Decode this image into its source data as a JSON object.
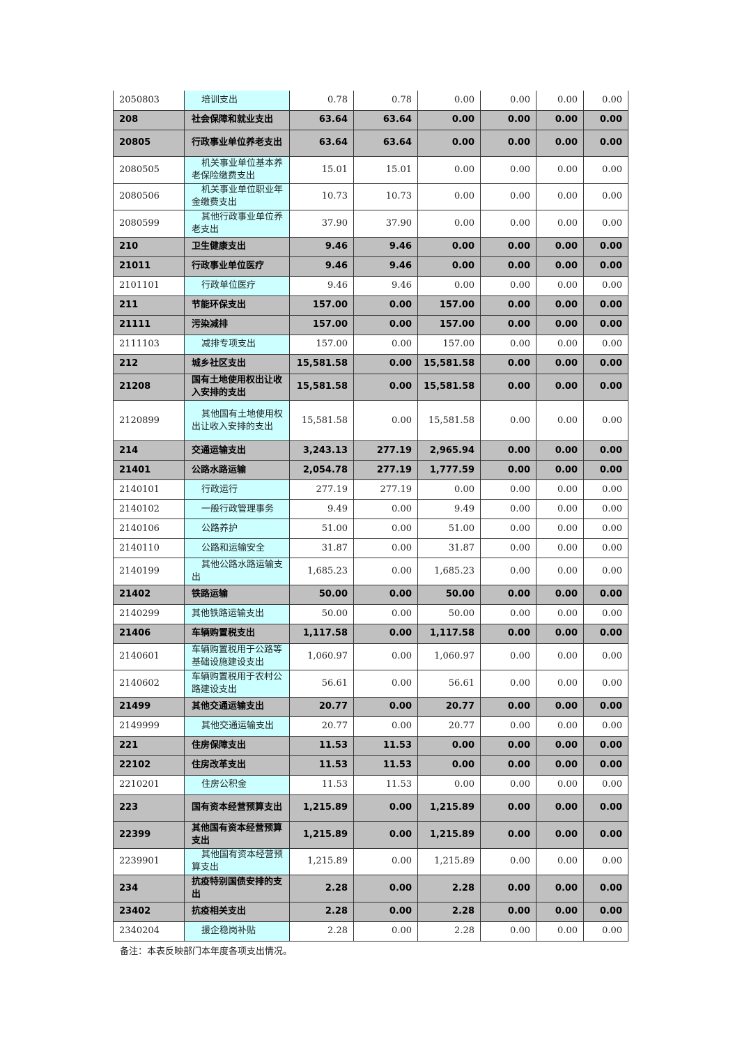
{
  "colors": {
    "summary_row": "#c0c0c0",
    "detail_name_cell": "#ccffff"
  },
  "rows": [
    {
      "code": "2050803",
      "name": "培训支出",
      "values": [
        "0.78",
        "0.78",
        "0.00",
        "0.00",
        "0.00",
        "0.00"
      ],
      "type": "det",
      "indent": true,
      "lines": 1
    },
    {
      "code": "208",
      "name": "社会保障和就业支出",
      "values": [
        "63.64",
        "63.64",
        "0.00",
        "0.00",
        "0.00",
        "0.00"
      ],
      "type": "sum",
      "indent": false,
      "lines": 1
    },
    {
      "code": "20805",
      "name": "行政事业单位养老支出",
      "values": [
        "63.64",
        "63.64",
        "0.00",
        "0.00",
        "0.00",
        "0.00"
      ],
      "type": "sum",
      "indent": false,
      "lines": 2
    },
    {
      "code": "2080505",
      "name": "机关事业单位基本养老保险缴费支出",
      "values": [
        "15.01",
        "15.01",
        "0.00",
        "0.00",
        "0.00",
        "0.00"
      ],
      "type": "det",
      "indent": true,
      "lines": 2
    },
    {
      "code": "2080506",
      "name": "机关事业单位职业年金缴费支出",
      "values": [
        "10.73",
        "10.73",
        "0.00",
        "0.00",
        "0.00",
        "0.00"
      ],
      "type": "det",
      "indent": true,
      "lines": 2
    },
    {
      "code": "2080599",
      "name": "其他行政事业单位养老支出",
      "values": [
        "37.90",
        "37.90",
        "0.00",
        "0.00",
        "0.00",
        "0.00"
      ],
      "type": "det",
      "indent": true,
      "lines": 2
    },
    {
      "code": "210",
      "name": "卫生健康支出",
      "values": [
        "9.46",
        "9.46",
        "0.00",
        "0.00",
        "0.00",
        "0.00"
      ],
      "type": "sum",
      "indent": false,
      "lines": 1
    },
    {
      "code": "21011",
      "name": "行政事业单位医疗",
      "values": [
        "9.46",
        "9.46",
        "0.00",
        "0.00",
        "0.00",
        "0.00"
      ],
      "type": "sum",
      "indent": false,
      "lines": 1
    },
    {
      "code": "2101101",
      "name": "行政单位医疗",
      "values": [
        "9.46",
        "9.46",
        "0.00",
        "0.00",
        "0.00",
        "0.00"
      ],
      "type": "det",
      "indent": true,
      "lines": 1
    },
    {
      "code": "211",
      "name": "节能环保支出",
      "values": [
        "157.00",
        "0.00",
        "157.00",
        "0.00",
        "0.00",
        "0.00"
      ],
      "type": "sum",
      "indent": false,
      "lines": 1
    },
    {
      "code": "21111",
      "name": "污染减排",
      "values": [
        "157.00",
        "0.00",
        "157.00",
        "0.00",
        "0.00",
        "0.00"
      ],
      "type": "sum",
      "indent": false,
      "lines": 1
    },
    {
      "code": "2111103",
      "name": "减排专项支出",
      "values": [
        "157.00",
        "0.00",
        "157.00",
        "0.00",
        "0.00",
        "0.00"
      ],
      "type": "det",
      "indent": true,
      "lines": 1
    },
    {
      "code": "212",
      "name": "城乡社区支出",
      "values": [
        "15,581.58",
        "0.00",
        "15,581.58",
        "0.00",
        "0.00",
        "0.00"
      ],
      "type": "sum",
      "indent": false,
      "lines": 1
    },
    {
      "code": "21208",
      "name": "国有土地使用权出让收入安排的支出",
      "values": [
        "15,581.58",
        "0.00",
        "15,581.58",
        "0.00",
        "0.00",
        "0.00"
      ],
      "type": "sum",
      "indent": false,
      "lines": 2
    },
    {
      "code": "2120899",
      "name": "其他国有土地使用权出让收入安排的支出",
      "values": [
        "15,581.58",
        "0.00",
        "15,581.58",
        "0.00",
        "0.00",
        "0.00"
      ],
      "type": "det",
      "indent": true,
      "lines": 3
    },
    {
      "code": "214",
      "name": "交通运输支出",
      "values": [
        "3,243.13",
        "277.19",
        "2,965.94",
        "0.00",
        "0.00",
        "0.00"
      ],
      "type": "sum",
      "indent": false,
      "lines": 1
    },
    {
      "code": "21401",
      "name": "公路水路运输",
      "values": [
        "2,054.78",
        "277.19",
        "1,777.59",
        "0.00",
        "0.00",
        "0.00"
      ],
      "type": "sum",
      "indent": false,
      "lines": 1
    },
    {
      "code": "2140101",
      "name": "行政运行",
      "values": [
        "277.19",
        "277.19",
        "0.00",
        "0.00",
        "0.00",
        "0.00"
      ],
      "type": "det",
      "indent": true,
      "lines": 1
    },
    {
      "code": "2140102",
      "name": "一般行政管理事务",
      "values": [
        "9.49",
        "0.00",
        "9.49",
        "0.00",
        "0.00",
        "0.00"
      ],
      "type": "det",
      "indent": true,
      "lines": 1
    },
    {
      "code": "2140106",
      "name": "公路养护",
      "values": [
        "51.00",
        "0.00",
        "51.00",
        "0.00",
        "0.00",
        "0.00"
      ],
      "type": "det",
      "indent": true,
      "lines": 1
    },
    {
      "code": "2140110",
      "name": "公路和运输安全",
      "values": [
        "31.87",
        "0.00",
        "31.87",
        "0.00",
        "0.00",
        "0.00"
      ],
      "type": "det",
      "indent": true,
      "lines": 1
    },
    {
      "code": "2140199",
      "name": "其他公路水路运输支出",
      "values": [
        "1,685.23",
        "0.00",
        "1,685.23",
        "0.00",
        "0.00",
        "0.00"
      ],
      "type": "det",
      "indent": true,
      "lines": 2
    },
    {
      "code": "21402",
      "name": "铁路运输",
      "values": [
        "50.00",
        "0.00",
        "50.00",
        "0.00",
        "0.00",
        "0.00"
      ],
      "type": "sum",
      "indent": false,
      "lines": 1
    },
    {
      "code": "2140299",
      "name": "其他铁路运输支出",
      "values": [
        "50.00",
        "0.00",
        "50.00",
        "0.00",
        "0.00",
        "0.00"
      ],
      "type": "det",
      "indent": false,
      "lines": 1
    },
    {
      "code": "21406",
      "name": "车辆购置税支出",
      "values": [
        "1,117.58",
        "0.00",
        "1,117.58",
        "0.00",
        "0.00",
        "0.00"
      ],
      "type": "sum",
      "indent": false,
      "lines": 1
    },
    {
      "code": "2140601",
      "name": "车辆购置税用于公路等基础设施建设支出",
      "values": [
        "1,060.97",
        "0.00",
        "1,060.97",
        "0.00",
        "0.00",
        "0.00"
      ],
      "type": "det",
      "indent": false,
      "lines": 2
    },
    {
      "code": "2140602",
      "name": "车辆购置税用于农村公路建设支出",
      "values": [
        "56.61",
        "0.00",
        "56.61",
        "0.00",
        "0.00",
        "0.00"
      ],
      "type": "det",
      "indent": false,
      "lines": 2
    },
    {
      "code": "21499",
      "name": "其他交通运输支出",
      "values": [
        "20.77",
        "0.00",
        "20.77",
        "0.00",
        "0.00",
        "0.00"
      ],
      "type": "sum",
      "indent": false,
      "lines": 1
    },
    {
      "code": "2149999",
      "name": "其他交通运输支出",
      "values": [
        "20.77",
        "0.00",
        "20.77",
        "0.00",
        "0.00",
        "0.00"
      ],
      "type": "det",
      "indent": true,
      "lines": 1
    },
    {
      "code": "221",
      "name": "住房保障支出",
      "values": [
        "11.53",
        "11.53",
        "0.00",
        "0.00",
        "0.00",
        "0.00"
      ],
      "type": "sum",
      "indent": false,
      "lines": 1
    },
    {
      "code": "22102",
      "name": "住房改革支出",
      "values": [
        "11.53",
        "11.53",
        "0.00",
        "0.00",
        "0.00",
        "0.00"
      ],
      "type": "sum",
      "indent": false,
      "lines": 1
    },
    {
      "code": "2210201",
      "name": "住房公积金",
      "values": [
        "11.53",
        "11.53",
        "0.00",
        "0.00",
        "0.00",
        "0.00"
      ],
      "type": "det",
      "indent": true,
      "lines": 1
    },
    {
      "code": "223",
      "name": "国有资本经营预算支出",
      "values": [
        "1,215.89",
        "0.00",
        "1,215.89",
        "0.00",
        "0.00",
        "0.00"
      ],
      "type": "sum",
      "indent": false,
      "lines": 2
    },
    {
      "code": "22399",
      "name": "其他国有资本经营预算支出",
      "values": [
        "1,215.89",
        "0.00",
        "1,215.89",
        "0.00",
        "0.00",
        "0.00"
      ],
      "type": "sum",
      "indent": false,
      "lines": 2
    },
    {
      "code": "2239901",
      "name": "其他国有资本经营预算支出",
      "values": [
        "1,215.89",
        "0.00",
        "1,215.89",
        "0.00",
        "0.00",
        "0.00"
      ],
      "type": "det",
      "indent": true,
      "lines": 2
    },
    {
      "code": "234",
      "name": "抗疫特别国债安排的支出",
      "values": [
        "2.28",
        "0.00",
        "2.28",
        "0.00",
        "0.00",
        "0.00"
      ],
      "type": "sum",
      "indent": false,
      "lines": 2
    },
    {
      "code": "23402",
      "name": "抗疫相关支出",
      "values": [
        "2.28",
        "0.00",
        "2.28",
        "0.00",
        "0.00",
        "0.00"
      ],
      "type": "sum",
      "indent": false,
      "lines": 1
    },
    {
      "code": "2340204",
      "name": "援企稳岗补贴",
      "values": [
        "2.28",
        "0.00",
        "2.28",
        "0.00",
        "0.00",
        "0.00"
      ],
      "type": "det",
      "indent": true,
      "lines": 1
    }
  ],
  "note": "备注：本表反映部门本年度各项支出情况。"
}
